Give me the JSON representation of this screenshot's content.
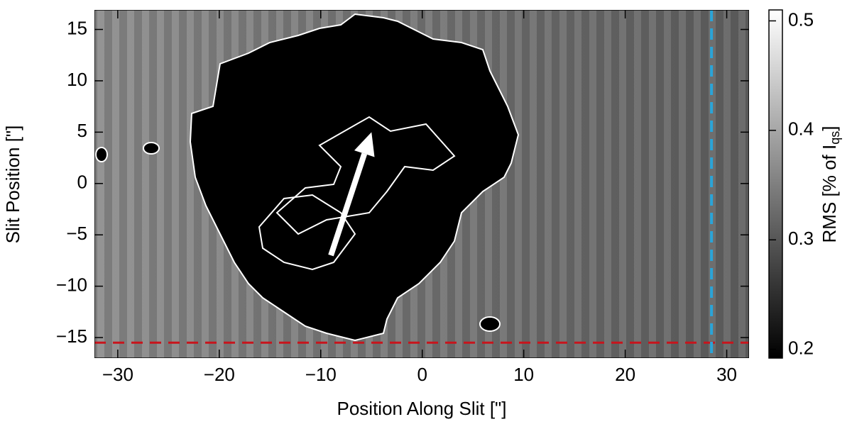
{
  "chart_data": {
    "type": "image",
    "xlabel": "Position Along Slit [\"]",
    "ylabel": "Slit Position [\"]",
    "xlim": [
      -32.3,
      32.2
    ],
    "ylim": [
      -17.0,
      16.9
    ],
    "xticks": [
      {
        "value": -30,
        "label": "−30"
      },
      {
        "value": -20,
        "label": "−20"
      },
      {
        "value": -10,
        "label": "−10"
      },
      0,
      10,
      20,
      30
    ],
    "yticks": [
      {
        "value": -15,
        "label": "−15"
      },
      {
        "value": -10,
        "label": "−10"
      },
      {
        "value": -5,
        "label": "−5"
      },
      0,
      5,
      10,
      15
    ],
    "colorbar": {
      "lim": [
        0.192,
        0.51
      ],
      "ticks": [
        0.2,
        0.3,
        0.4,
        0.5
      ],
      "label": [
        "RMS [% of I",
        "qs",
        "]"
      ]
    },
    "hlines": [
      {
        "y": -15.5,
        "color": "#c8141c"
      }
    ],
    "vlines": [
      {
        "x": 28.5,
        "color": "#2aa4d8"
      }
    ],
    "arrow": {
      "x": [
        -9,
        -5
      ],
      "y": [
        -7,
        5
      ],
      "color": "#ffffff"
    }
  }
}
